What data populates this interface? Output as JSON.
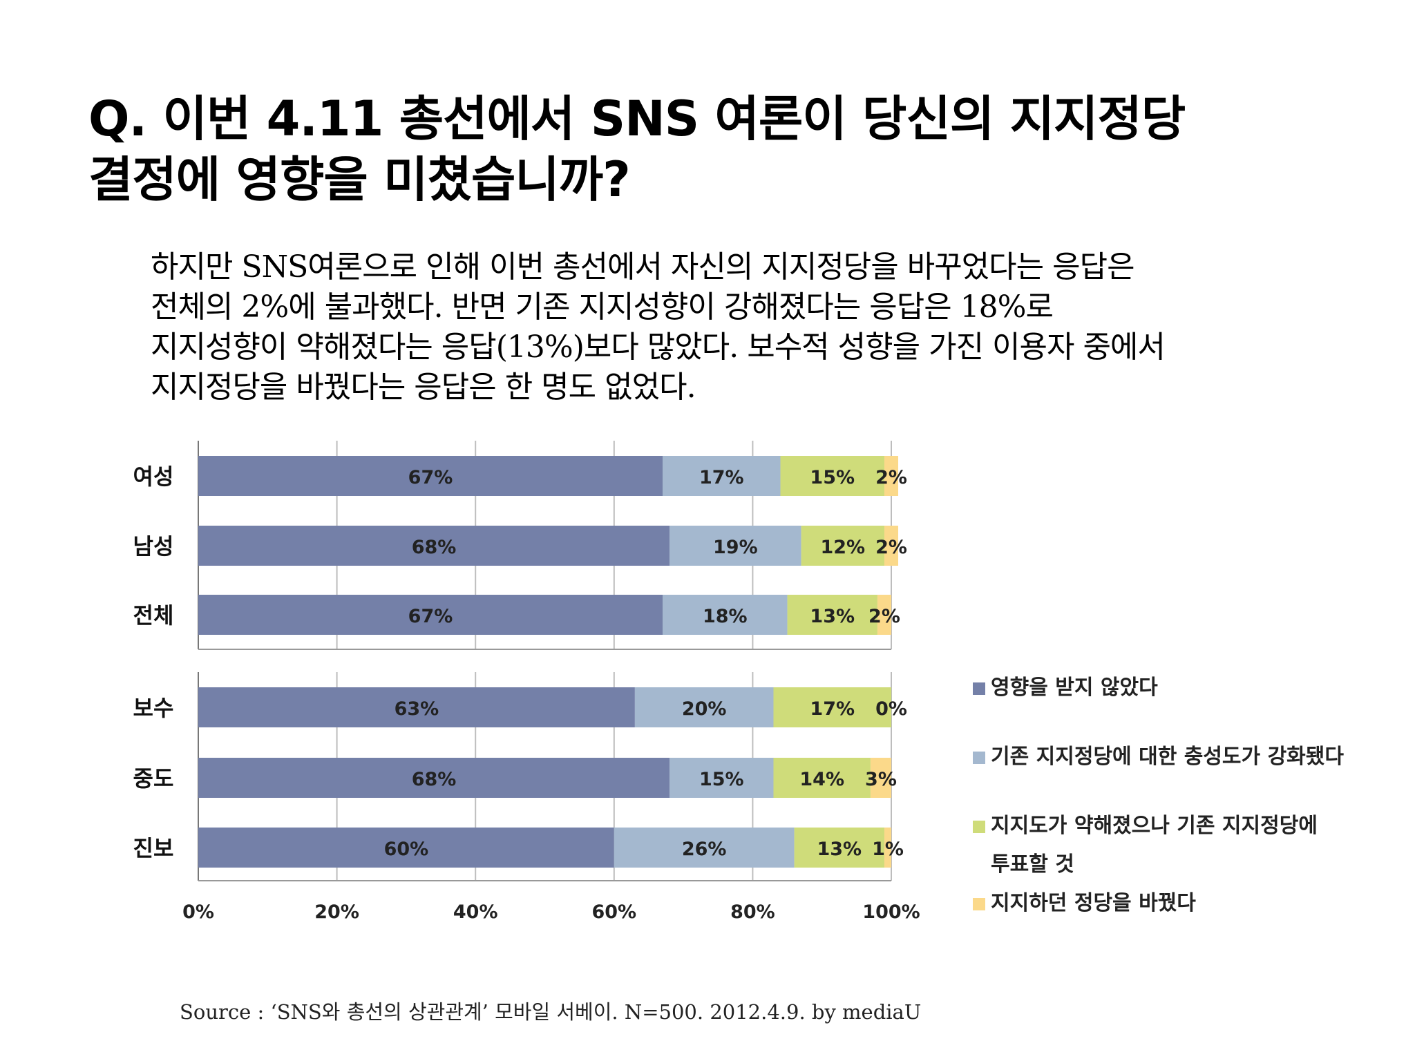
{
  "title": {
    "line1": "Q. 이번 4.11 총선에서 SNS 여론이 당신의 지지정당",
    "line2": "결정에 영향을 미쳤습니까?"
  },
  "body": {
    "lines": [
      "하지만 SNS여론으로 인해 이번 총선에서 자신의 지지정당을 바꾸었다는 응답은",
      "전체의 2%에 불과했다. 반면 기존 지지성향이 강해졌다는 응답은 18%로",
      "지지성향이 약해졌다는 응답(13%)보다 많았다. 보수적 성향을 가진 이용자 중에서",
      "지지정당을 바꿨다는 응답은 한 명도 없었다."
    ]
  },
  "chart_data": {
    "type": "bar",
    "orientation": "horizontal",
    "stacked": "percent",
    "groups": [
      {
        "categories": [
          "여성",
          "남성",
          "전체"
        ]
      },
      {
        "categories": [
          "보수",
          "중도",
          "진보"
        ]
      }
    ],
    "categories": [
      "여성",
      "남성",
      "전체",
      "보수",
      "중도",
      "진보"
    ],
    "series": [
      {
        "name": "영향을 받지 않았다",
        "color": "#7480a8",
        "values": [
          67,
          68,
          67,
          63,
          68,
          60
        ]
      },
      {
        "name": "기존 지지정당에 대한 충성도가 강화됐다",
        "color": "#a4b8cf",
        "values": [
          17,
          19,
          18,
          20,
          15,
          26
        ]
      },
      {
        "name": "지지도가 약해졌으나 기존 지지정당에 투표할 것",
        "color": "#cfdc7a",
        "values": [
          15,
          12,
          13,
          17,
          14,
          13
        ]
      },
      {
        "name": "지지하던 정당을 바꿨다",
        "color": "#fbd98a",
        "values": [
          2,
          2,
          2,
          0,
          3,
          1
        ]
      }
    ],
    "xticks": [
      "0%",
      "20%",
      "40%",
      "60%",
      "80%",
      "100%"
    ],
    "xlim": [
      0,
      100
    ],
    "grid": true,
    "legend": "right"
  },
  "legend_labels": {
    "item1": "영향을 받지 않았다",
    "item2": "기존 지지정당에 대한 충성도가 강화됐다",
    "item3_line1": "지지도가 약해졌으나 기존 지지정당에",
    "item3_line2": "투표할 것",
    "item4": "지지하던 정당을 바꿨다"
  },
  "source": "Source : ‘SNS와 총선의 상관관계’ 모바일 서베이. N=500. 2012.4.9. by mediaU"
}
